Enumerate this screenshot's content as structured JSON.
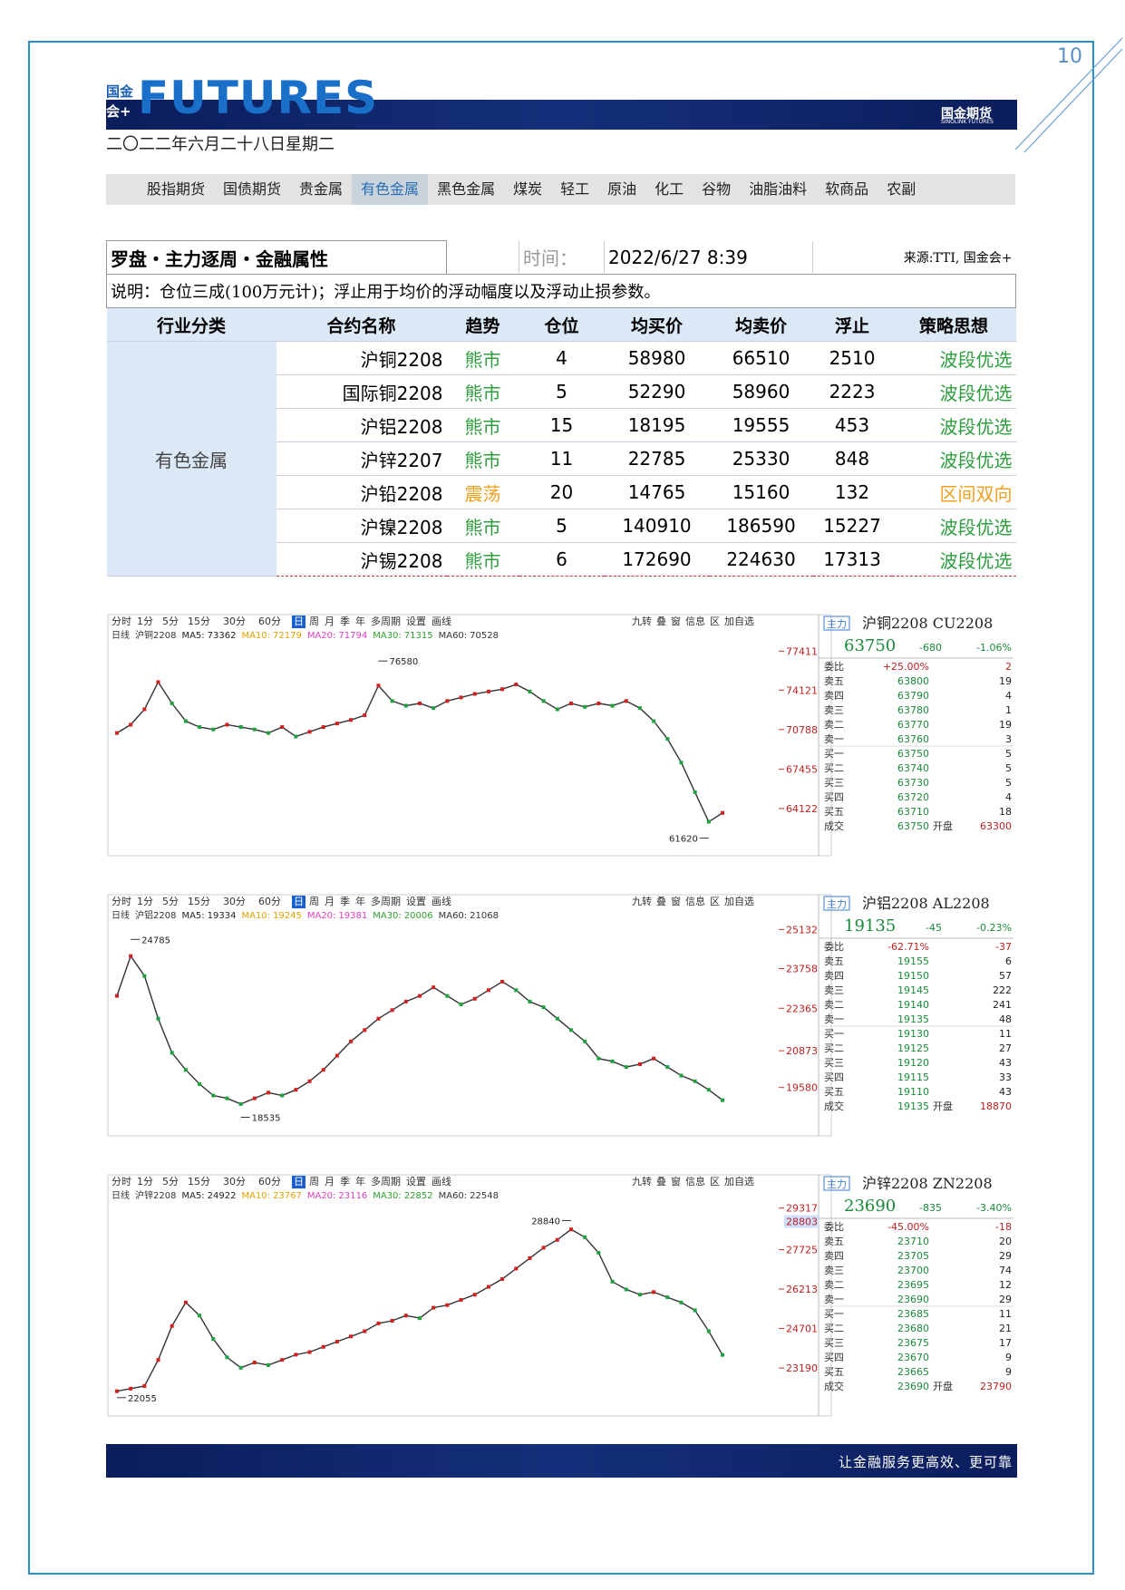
{
  "page_number": "10",
  "header": {
    "logo_top": "国金",
    "logo_bottom": "会+",
    "logo": "FUTURES",
    "brand": "国金期货",
    "brand_en": "SINOLINK FUTURES",
    "date": "二〇二二年六月二十八日星期二"
  },
  "nav": {
    "items": [
      "股指期货",
      "国债期货",
      "贵金属",
      "有色金属",
      "黑色金属",
      "煤炭",
      "轻工",
      "原油",
      "化工",
      "谷物",
      "油脂油料",
      "软商品",
      "农副"
    ],
    "active": 3
  },
  "table": {
    "title": "罗盘・主力逐周・金融属性",
    "time_label": "时间：",
    "time": "2022/6/27 8:39",
    "source": "来源:TTI, 国金会+",
    "note": "说明：仓位三成(100万元计)；浮止用于均价的浮动幅度以及浮动止损参数。",
    "headers": [
      "行业分类",
      "合约名称",
      "趋势",
      "仓位",
      "均买价",
      "均卖价",
      "浮止",
      "策略思想"
    ],
    "category": "有色金属",
    "rows": [
      [
        "沪铜2208",
        "熊市",
        4,
        58980,
        66510,
        2510,
        "波段优选"
      ],
      [
        "国际铜2208",
        "熊市",
        5,
        52290,
        58960,
        2223,
        "波段优选"
      ],
      [
        "沪铝2208",
        "熊市",
        15,
        18195,
        19555,
        453,
        "波段优选"
      ],
      [
        "沪锌2207",
        "熊市",
        11,
        22785,
        25330,
        848,
        "波段优选"
      ],
      [
        "沪铅2208",
        "震荡",
        20,
        14765,
        15160,
        132,
        "区间双向"
      ],
      [
        "沪镍2208",
        "熊市",
        5,
        140910,
        186590,
        15227,
        "波段优选"
      ],
      [
        "沪锡2208",
        "熊市",
        6,
        172690,
        224630,
        17313,
        "波段优选"
      ]
    ],
    "row_colors": [
      "#2e9e3e",
      "#2e9e3e",
      "#2e9e3e",
      "#2e9e3e",
      "#f0a020",
      "#2e9e3e",
      "#2e9e3e"
    ]
  },
  "toolbar": {
    "items": [
      "分时",
      "1分",
      "5分",
      "15分",
      "30分",
      "60分",
      "日",
      "周",
      "月",
      "季",
      "年",
      "多周期",
      "设置",
      "画线"
    ],
    "active": 6,
    "tools": [
      "九转",
      "叠",
      "窗",
      "信息",
      "区",
      "加自选"
    ]
  },
  "charts": [
    {
      "type": "line",
      "period": "日线",
      "contract": "沪铜2208",
      "color": "#333333",
      "ma": [
        {
          "name": "MA5:",
          "value": 73362,
          "color": "#222222"
        },
        {
          "name": "MA10:",
          "value": 72179,
          "color": "#e0a000"
        },
        {
          "name": "MA20:",
          "value": 71794,
          "color": "#e040c0"
        },
        {
          "name": "MA30:",
          "value": 71315,
          "color": "#30a030"
        },
        {
          "name": "MA60:",
          "value": 70528,
          "color": "#333333"
        }
      ],
      "ylim": [
        60900,
        78200
      ],
      "yticks": [
        77411,
        74121,
        70788,
        67455,
        64122
      ],
      "values": [
        70500,
        71200,
        72500,
        74800,
        73000,
        71500,
        71000,
        70800,
        71200,
        71000,
        70800,
        70500,
        71000,
        70200,
        70600,
        71000,
        71300,
        71600,
        72000,
        74500,
        73200,
        72800,
        73000,
        72600,
        73200,
        73500,
        73800,
        74000,
        74200,
        74600,
        74000,
        73200,
        72500,
        73000,
        72700,
        73000,
        72800,
        73200,
        72600,
        71500,
        70000,
        68000,
        65500,
        63000,
        63750
      ],
      "high": {
        "x": 19,
        "value": 76580
      },
      "low": {
        "x": 43,
        "value": 61620
      },
      "quote": {
        "tag": "主力",
        "title": "沪铜2208 CU2208",
        "price": 63750,
        "change": -680,
        "pct": "-1.06%",
        "ratio_label": "委比",
        "ratio": "+25.00%",
        "ratio_diff": 2,
        "rows": [
          [
            "卖五",
            63800,
            19
          ],
          [
            "卖四",
            63790,
            4
          ],
          [
            "卖三",
            63780,
            1
          ],
          [
            "卖二",
            63770,
            19
          ],
          [
            "卖一",
            63760,
            3
          ],
          [
            "买一",
            63750,
            5
          ],
          [
            "买二",
            63740,
            5
          ],
          [
            "买三",
            63730,
            5
          ],
          [
            "买四",
            63720,
            4
          ],
          [
            "买五",
            63710,
            18
          ]
        ],
        "deal": {
          "label": "成交",
          "price": 63750,
          "open_label": "开盘",
          "open": 63300
        }
      }
    },
    {
      "type": "line",
      "period": "日线",
      "contract": "沪铝2208",
      "color": "#333333",
      "ma": [
        {
          "name": "MA5:",
          "value": 19334,
          "color": "#222222"
        },
        {
          "name": "MA10:",
          "value": 19245,
          "color": "#e0a000"
        },
        {
          "name": "MA20:",
          "value": 19381,
          "color": "#e040c0"
        },
        {
          "name": "MA30:",
          "value": 20006,
          "color": "#30a030"
        },
        {
          "name": "MA60:",
          "value": 21068,
          "color": "#333333"
        }
      ],
      "ylim": [
        18200,
        25400
      ],
      "yticks": [
        25132,
        23758,
        22365,
        20873,
        19580
      ],
      "values": [
        22800,
        24200,
        23500,
        22000,
        20800,
        20200,
        19700,
        19300,
        19200,
        19000,
        19200,
        19400,
        19300,
        19500,
        19800,
        20200,
        20700,
        21200,
        21600,
        22000,
        22300,
        22600,
        22800,
        23100,
        22800,
        22500,
        22700,
        23000,
        23300,
        23000,
        22600,
        22400,
        22000,
        21600,
        21200,
        20600,
        20500,
        20300,
        20400,
        20600,
        20300,
        20000,
        19800,
        19500,
        19135
      ],
      "high": {
        "x": 1,
        "value": 24785
      },
      "low": {
        "x": 9,
        "value": 18535
      },
      "quote": {
        "tag": "主力",
        "title": "沪铝2208 AL2208",
        "price": 19135,
        "change": -45,
        "pct": "-0.23%",
        "ratio_label": "委比",
        "ratio": "-62.71%",
        "ratio_diff": -37,
        "rows": [
          [
            "卖五",
            19155,
            6
          ],
          [
            "卖四",
            19150,
            57
          ],
          [
            "卖三",
            19145,
            222
          ],
          [
            "卖二",
            19140,
            241
          ],
          [
            "卖一",
            19135,
            48
          ],
          [
            "买一",
            19130,
            11
          ],
          [
            "买二",
            19125,
            27
          ],
          [
            "买三",
            19120,
            43
          ],
          [
            "买四",
            19115,
            33
          ],
          [
            "买五",
            19110,
            43
          ]
        ],
        "deal": {
          "label": "成交",
          "price": 19135,
          "open_label": "开盘",
          "open": 18870
        }
      }
    },
    {
      "type": "line",
      "period": "日线",
      "contract": "沪锌2208",
      "color": "#333333",
      "ma": [
        {
          "name": "MA5:",
          "value": 24922,
          "color": "#222222"
        },
        {
          "name": "MA10:",
          "value": 23767,
          "color": "#e0a000"
        },
        {
          "name": "MA20:",
          "value": 23116,
          "color": "#e040c0"
        },
        {
          "name": "MA30:",
          "value": 22852,
          "color": "#30a030"
        },
        {
          "name": "MA60:",
          "value": 22548,
          "color": "#333333"
        }
      ],
      "ylim": [
        21700,
        29550
      ],
      "yticks": [
        29317,
        27725,
        26213,
        24701,
        23190
      ],
      "last_label": 28803,
      "values": [
        22300,
        22400,
        22500,
        23500,
        24800,
        25700,
        25200,
        24300,
        23600,
        23200,
        23400,
        23300,
        23500,
        23700,
        23800,
        24000,
        24200,
        24400,
        24600,
        24900,
        25000,
        25200,
        25100,
        25500,
        25600,
        25800,
        26000,
        26300,
        26600,
        27000,
        27400,
        27800,
        28100,
        28500,
        28200,
        27600,
        26500,
        26200,
        26000,
        26100,
        25900,
        25700,
        25400,
        24600,
        23690
      ],
      "high": {
        "x": 33,
        "value": 28840
      },
      "low": {
        "x": 0,
        "value": 22055
      },
      "quote": {
        "tag": "主力",
        "title": "沪锌2208 ZN2208",
        "price": 23690,
        "change": -835,
        "pct": "-3.40%",
        "ratio_label": "委比",
        "ratio": "-45.00%",
        "ratio_diff": -18,
        "rows": [
          [
            "卖五",
            23710,
            20
          ],
          [
            "卖四",
            23705,
            29
          ],
          [
            "卖三",
            23700,
            74
          ],
          [
            "卖二",
            23695,
            12
          ],
          [
            "卖一",
            23690,
            29
          ],
          [
            "买一",
            23685,
            11
          ],
          [
            "买二",
            23680,
            21
          ],
          [
            "买三",
            23675,
            17
          ],
          [
            "买四",
            23670,
            9
          ],
          [
            "买五",
            23665,
            9
          ]
        ],
        "deal": {
          "label": "成交",
          "price": 23690,
          "open_label": "开盘",
          "open": 23790
        }
      }
    }
  ],
  "footer": {
    "slogan": "让金融服务更高效、更可靠"
  }
}
